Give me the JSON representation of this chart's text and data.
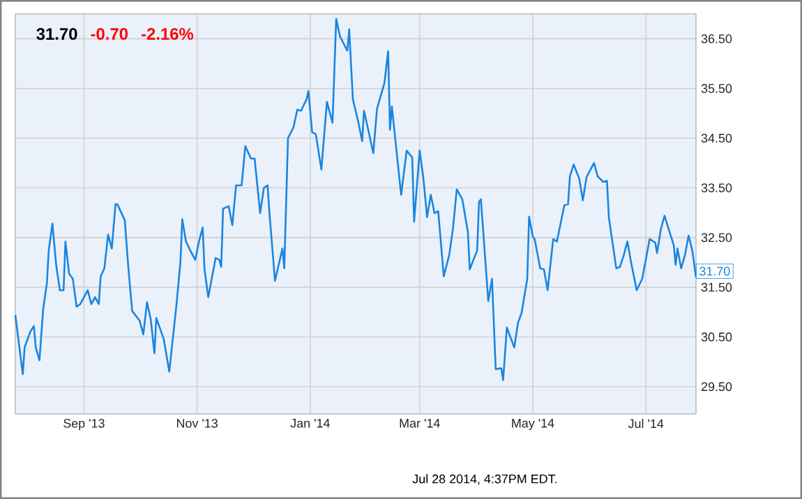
{
  "chart_data": {
    "type": "line",
    "title": "31.70",
    "annotations": [
      "-0.70",
      "-2.16%",
      {
        "text": "31.70",
        "x": "2014-07-28",
        "y": 31.7
      },
      "Jul 28 2014, 4:37PM EDT."
    ],
    "x": [
      "2013-07-26",
      "2013-07-30",
      "2013-07-31",
      "2013-08-03",
      "2013-08-05",
      "2013-08-06",
      "2013-08-08",
      "2013-08-10",
      "2013-08-12",
      "2013-08-13",
      "2013-08-15",
      "2013-08-17",
      "2013-08-19",
      "2013-08-21",
      "2013-08-22",
      "2013-08-24",
      "2013-08-26",
      "2013-08-28",
      "2013-08-30",
      "2013-09-03",
      "2013-09-05",
      "2013-09-07",
      "2013-09-09",
      "2013-09-10",
      "2013-09-12",
      "2013-09-14",
      "2013-09-16",
      "2013-09-18",
      "2013-09-19",
      "2013-09-23",
      "2013-09-25",
      "2013-09-27",
      "2013-10-01",
      "2013-10-03",
      "2013-10-05",
      "2013-10-07",
      "2013-10-09",
      "2013-10-10",
      "2013-10-14",
      "2013-10-17",
      "2013-10-21",
      "2013-10-23",
      "2013-10-24",
      "2013-10-26",
      "2013-10-29",
      "2013-10-31",
      "2013-11-02",
      "2013-11-04",
      "2013-11-05",
      "2013-11-07",
      "2013-11-11",
      "2013-11-13",
      "2013-11-14",
      "2013-11-15",
      "2013-11-18",
      "2013-11-20",
      "2013-11-22",
      "2013-11-25",
      "2013-11-27",
      "2013-11-30",
      "2013-12-02",
      "2013-12-05",
      "2013-12-07",
      "2013-12-09",
      "2013-12-10",
      "2013-12-13",
      "2013-12-17",
      "2013-12-18",
      "2013-12-20",
      "2013-12-23",
      "2013-12-25",
      "2013-12-27",
      "2013-12-30",
      "2013-12-31",
      "2014-01-02",
      "2014-01-04",
      "2014-01-07",
      "2014-01-10",
      "2014-01-13",
      "2014-01-15",
      "2014-01-17",
      "2014-01-21",
      "2014-01-22",
      "2014-01-24",
      "2014-01-27",
      "2014-01-29",
      "2014-01-30",
      "2014-02-04",
      "2014-02-06",
      "2014-02-10",
      "2014-02-12",
      "2014-02-13",
      "2014-02-14",
      "2014-02-19",
      "2014-02-22",
      "2014-02-25",
      "2014-02-26",
      "2014-03-01",
      "2014-03-03",
      "2014-03-05",
      "2014-03-07",
      "2014-03-09",
      "2014-03-11",
      "2014-03-14",
      "2014-03-17",
      "2014-03-19",
      "2014-03-21",
      "2014-03-24",
      "2014-03-27",
      "2014-03-28",
      "2014-04-01",
      "2014-04-02",
      "2014-04-03",
      "2014-04-07",
      "2014-04-09",
      "2014-04-11",
      "2014-04-14",
      "2014-04-15",
      "2014-04-17",
      "2014-04-21",
      "2014-04-23",
      "2014-04-25",
      "2014-04-28",
      "2014-04-29",
      "2014-05-01",
      "2014-05-02",
      "2014-05-05",
      "2014-05-07",
      "2014-05-09",
      "2014-05-12",
      "2014-05-14",
      "2014-05-18",
      "2014-05-20",
      "2014-05-21",
      "2014-05-23",
      "2014-05-26",
      "2014-05-28",
      "2014-05-30",
      "2014-06-03",
      "2014-06-05",
      "2014-06-08",
      "2014-06-10",
      "2014-06-11",
      "2014-06-15",
      "2014-06-17",
      "2014-06-19",
      "2014-06-21",
      "2014-06-23",
      "2014-06-26",
      "2014-06-29",
      "2014-07-03",
      "2014-07-06",
      "2014-07-07",
      "2014-07-09",
      "2014-07-11",
      "2014-07-13",
      "2014-07-16",
      "2014-07-17",
      "2014-07-18",
      "2014-07-20",
      "2014-07-22",
      "2014-07-24",
      "2014-07-26",
      "2014-07-28"
    ],
    "series": [
      {
        "color": "#1a85e0",
        "values": [
          30.94,
          29.75,
          30.29,
          30.6,
          30.72,
          30.29,
          30.03,
          31.06,
          31.58,
          32.24,
          32.78,
          31.95,
          31.44,
          31.44,
          32.42,
          31.77,
          31.67,
          31.11,
          31.16,
          31.44,
          31.16,
          31.3,
          31.16,
          31.72,
          31.88,
          32.56,
          32.28,
          33.17,
          33.17,
          32.85,
          31.86,
          31.02,
          30.83,
          30.55,
          31.2,
          30.85,
          30.17,
          30.88,
          30.46,
          29.8,
          31.2,
          32.0,
          32.87,
          32.42,
          32.19,
          32.05,
          32.42,
          32.7,
          31.86,
          31.3,
          32.09,
          32.05,
          31.91,
          33.08,
          33.13,
          32.75,
          33.55,
          33.55,
          34.34,
          34.09,
          34.09,
          32.99,
          33.5,
          33.55,
          32.99,
          31.63,
          32.28,
          31.88,
          34.5,
          34.72,
          35.07,
          35.05,
          35.28,
          35.45,
          34.62,
          34.58,
          33.87,
          35.23,
          34.81,
          36.9,
          36.55,
          36.26,
          36.69,
          35.28,
          34.81,
          34.44,
          35.05,
          34.2,
          35.09,
          35.61,
          36.25,
          34.67,
          35.14,
          33.36,
          34.25,
          34.11,
          32.82,
          34.25,
          33.69,
          32.91,
          33.36,
          32.99,
          33.03,
          31.72,
          32.16,
          32.7,
          33.47,
          33.27,
          32.61,
          31.86,
          32.24,
          33.22,
          33.27,
          31.22,
          31.67,
          29.85,
          29.87,
          29.63,
          30.69,
          30.29,
          30.78,
          30.99,
          31.67,
          32.92,
          32.52,
          32.47,
          31.88,
          31.86,
          31.44,
          32.47,
          32.42,
          33.15,
          33.17,
          33.73,
          33.97,
          33.69,
          33.25,
          33.72,
          34.0,
          33.73,
          33.62,
          33.64,
          32.91,
          31.88,
          31.91,
          32.14,
          32.42,
          32.0,
          31.44,
          31.67,
          32.47,
          32.4,
          32.19,
          32.66,
          32.94,
          32.7,
          32.35,
          31.95,
          32.28,
          31.88,
          32.14,
          32.54,
          32.24,
          31.7
        ]
      }
    ],
    "xlim": [
      "2013-07-26",
      "2014-07-28"
    ],
    "xticks": [
      {
        "value": "2013-09-01",
        "label": "Sep '13"
      },
      {
        "value": "2013-11-01",
        "label": "Nov '13"
      },
      {
        "value": "2014-01-01",
        "label": "Jan '14"
      },
      {
        "value": "2014-03-01",
        "label": "Mar '14"
      },
      {
        "value": "2014-05-01",
        "label": "May '14"
      },
      {
        "value": "2014-07-01",
        "label": "Jul '14"
      }
    ],
    "ylim": [
      28.95,
      37.0
    ],
    "yticks": [
      {
        "value": 29.5,
        "label": "29.50"
      },
      {
        "value": 30.5,
        "label": "30.50"
      },
      {
        "value": 31.5,
        "label": "31.50"
      },
      {
        "value": 32.5,
        "label": "32.50"
      },
      {
        "value": 33.5,
        "label": "33.50"
      },
      {
        "value": 34.5,
        "label": "34.50"
      },
      {
        "value": 35.5,
        "label": "35.50"
      },
      {
        "value": 36.5,
        "label": "36.50"
      }
    ],
    "grid": true,
    "marker": "none",
    "line_style": "solid"
  }
}
